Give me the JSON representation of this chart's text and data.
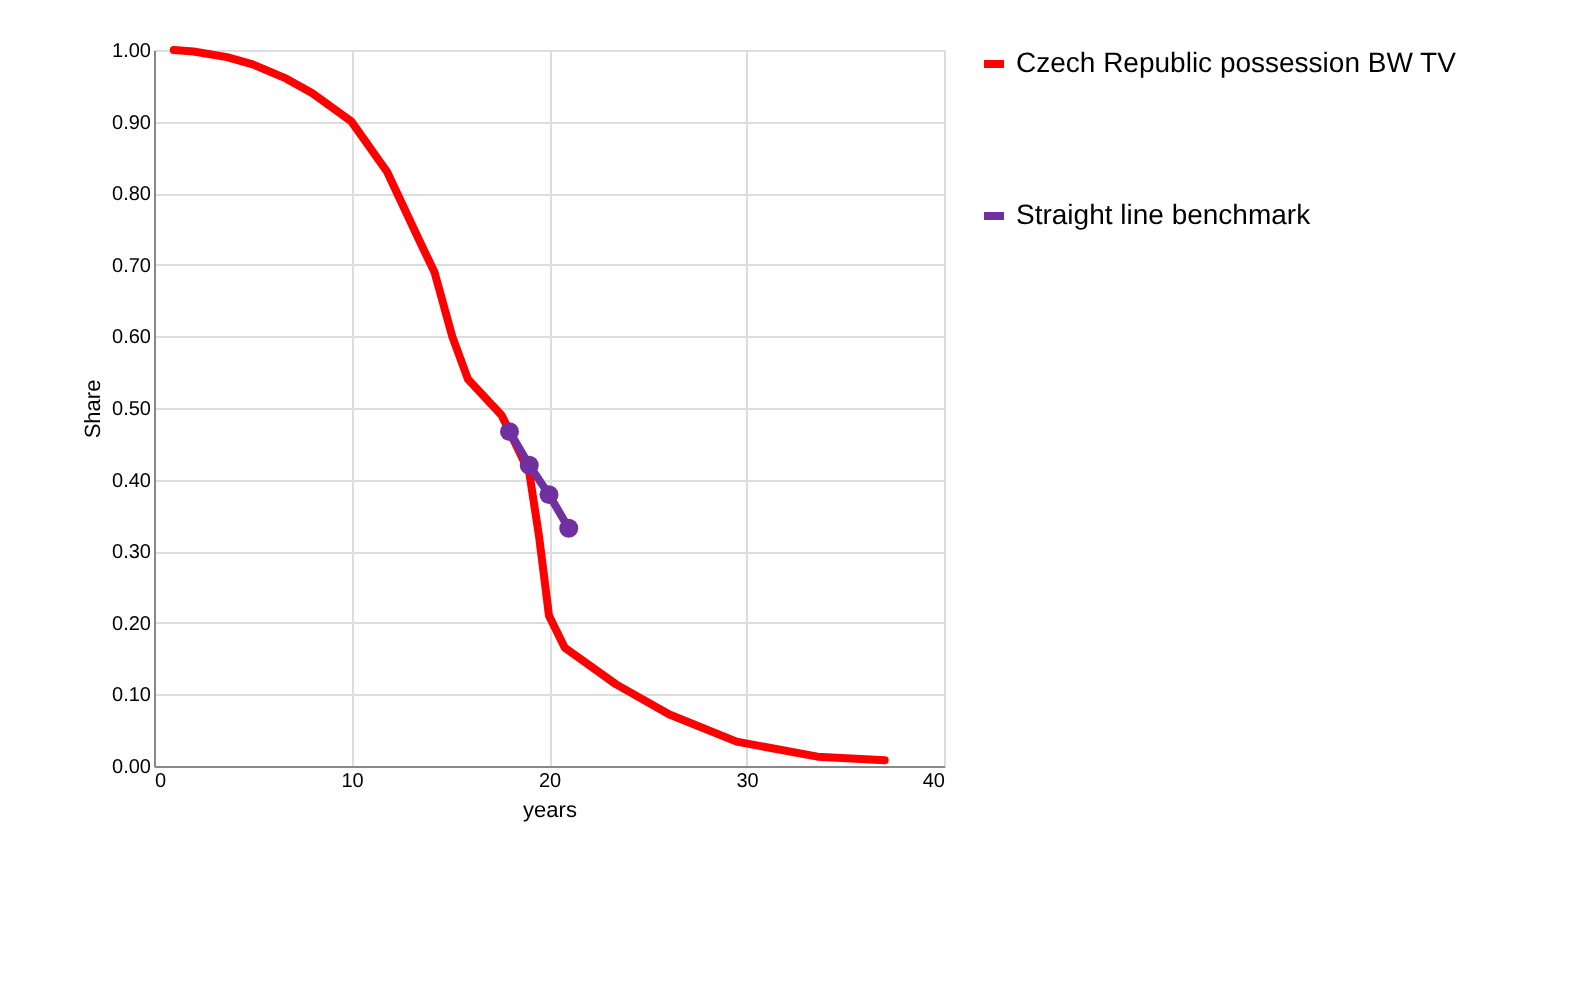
{
  "chart_data": {
    "type": "line",
    "xlabel": "years",
    "ylabel": "Share",
    "xlim": [
      0,
      40
    ],
    "xticks": [
      0,
      10,
      20,
      30,
      40
    ],
    "ylim": [
      0,
      1
    ],
    "yticks": [
      {
        "value": 0,
        "label": "0.00"
      },
      {
        "value": 0.1,
        "label": "0.10"
      },
      {
        "value": 0.2,
        "label": "0.20"
      },
      {
        "value": 0.3,
        "label": "0.30"
      },
      {
        "value": 0.4,
        "label": "0.40"
      },
      {
        "value": 0.5,
        "label": "0.50"
      },
      {
        "value": 0.6,
        "label": "0.60"
      },
      {
        "value": 0.7,
        "label": "0.70"
      },
      {
        "value": 0.8,
        "label": "0.80"
      },
      {
        "value": 0.9,
        "label": "0.90"
      },
      {
        "value": 1.0,
        "label": "1.00"
      }
    ],
    "grid": true,
    "legend": "right",
    "series": [
      {
        "name": "Czech Republic possession BW TV",
        "color": "#ff0000",
        "marker": "none",
        "x": [
          1,
          2,
          3.7,
          5,
          6.7,
          8,
          10,
          11.8,
          13.5,
          14.2,
          15.1,
          15.9,
          17.6,
          19.0,
          19.5,
          20,
          20.8,
          23.4,
          26.1,
          29.5,
          33.6,
          37
        ],
        "values": [
          1.0,
          0.998,
          0.99,
          0.98,
          0.96,
          0.94,
          0.9,
          0.83,
          0.73,
          0.69,
          0.6,
          0.54,
          0.49,
          0.41,
          0.32,
          0.21,
          0.165,
          0.114,
          0.072,
          0.034,
          0.013,
          0.008
        ]
      },
      {
        "name": "Straight line benchmark",
        "color": "#7030a0",
        "marker": "circle",
        "x": [
          18,
          19,
          20,
          21
        ],
        "values": [
          0.467,
          0.42,
          0.379,
          0.332
        ]
      }
    ]
  }
}
